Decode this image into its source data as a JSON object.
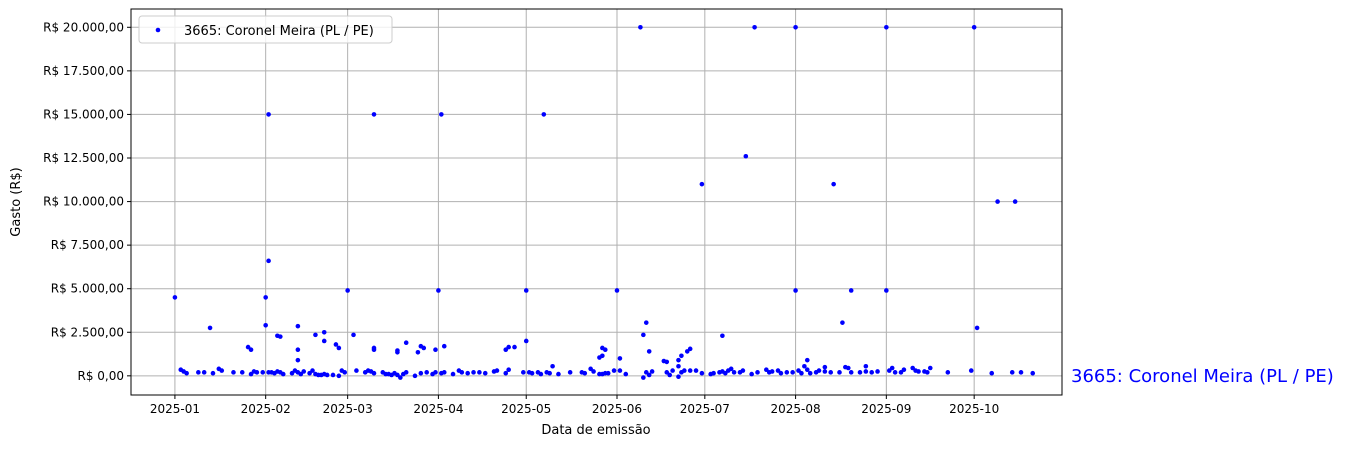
{
  "chart_data": {
    "type": "scatter",
    "xlabel": "Data de emissão",
    "ylabel": "Gasto (R$)",
    "x_type": "date",
    "xlim": [
      "2024-12-17",
      "2025-10-31"
    ],
    "ylim": [
      -1100,
      21050
    ],
    "x_ticks": [
      "2025-01",
      "2025-02",
      "2025-03",
      "2025-04",
      "2025-05",
      "2025-06",
      "2025-07",
      "2025-08",
      "2025-09",
      "2025-10"
    ],
    "y_ticks": [
      0,
      2500,
      5000,
      7500,
      10000,
      12500,
      15000,
      17500,
      20000
    ],
    "y_tick_labels": [
      "R$ 0,00",
      "R$ 2.500,00",
      "R$ 5.000,00",
      "R$ 7.500,00",
      "R$ 10.000,00",
      "R$ 12.500,00",
      "R$ 15.000,00",
      "R$ 17.500,00",
      "R$ 20.000,00"
    ],
    "grid": true,
    "legend_position": "top-left",
    "series": [
      {
        "name": "3665: Coronel Meira (PL / PE)",
        "color": "#0000ff",
        "points": [
          [
            "2025-01-01",
            4500
          ],
          [
            "2025-02-02",
            15000
          ],
          [
            "2025-02-02",
            6600
          ],
          [
            "2025-02-01",
            4500
          ],
          [
            "2025-02-01",
            2900
          ],
          [
            "2025-01-13",
            2750
          ],
          [
            "2025-03-10",
            15000
          ],
          [
            "2025-04-02",
            15000
          ],
          [
            "2025-05-07",
            15000
          ],
          [
            "2025-06-09",
            20000
          ],
          [
            "2025-07-18",
            20000
          ],
          [
            "2025-08-01",
            20000
          ],
          [
            "2025-09-01",
            20000
          ],
          [
            "2025-10-01",
            20000
          ],
          [
            "2025-07-15",
            12600
          ],
          [
            "2025-06-30",
            11000
          ],
          [
            "2025-08-14",
            11000
          ],
          [
            "2025-10-09",
            10000
          ],
          [
            "2025-10-15",
            10000
          ],
          [
            "2025-03-01",
            4900
          ],
          [
            "2025-04-01",
            4900
          ],
          [
            "2025-05-01",
            4900
          ],
          [
            "2025-06-01",
            4900
          ],
          [
            "2025-08-01",
            4900
          ],
          [
            "2025-08-20",
            4900
          ],
          [
            "2025-09-01",
            4900
          ],
          [
            "2025-10-02",
            2750
          ],
          [
            "2025-08-17",
            3050
          ],
          [
            "2025-06-11",
            3050
          ],
          [
            "2025-06-10",
            2350
          ],
          [
            "2025-07-07",
            2300
          ],
          [
            "2025-02-12",
            2850
          ],
          [
            "2025-02-05",
            2300
          ],
          [
            "2025-02-06",
            2250
          ],
          [
            "2025-02-18",
            2350
          ],
          [
            "2025-03-03",
            2350
          ],
          [
            "2025-02-21",
            2500
          ],
          [
            "2025-02-21",
            2000
          ],
          [
            "2025-01-26",
            1650
          ],
          [
            "2025-01-27",
            1500
          ],
          [
            "2025-02-12",
            1500
          ],
          [
            "2025-02-12",
            900
          ],
          [
            "2025-02-25",
            1800
          ],
          [
            "2025-02-26",
            1600
          ],
          [
            "2025-03-10",
            1600
          ],
          [
            "2025-03-10",
            1500
          ],
          [
            "2025-03-18",
            1450
          ],
          [
            "2025-03-18",
            1350
          ],
          [
            "2025-03-21",
            1900
          ],
          [
            "2025-03-25",
            1350
          ],
          [
            "2025-03-26",
            1700
          ],
          [
            "2025-03-27",
            1600
          ],
          [
            "2025-03-31",
            1500
          ],
          [
            "2025-04-03",
            1700
          ],
          [
            "2025-04-24",
            1500
          ],
          [
            "2025-04-25",
            1650
          ],
          [
            "2025-04-27",
            1650
          ],
          [
            "2025-05-01",
            2000
          ],
          [
            "2025-05-26",
            1050
          ],
          [
            "2025-05-27",
            1150
          ],
          [
            "2025-05-27",
            1600
          ],
          [
            "2025-05-28",
            1500
          ],
          [
            "2025-06-02",
            1000
          ],
          [
            "2025-06-12",
            1400
          ],
          [
            "2025-06-17",
            850
          ],
          [
            "2025-06-18",
            800
          ],
          [
            "2025-06-22",
            900
          ],
          [
            "2025-06-23",
            1150
          ],
          [
            "2025-06-25",
            1400
          ],
          [
            "2025-06-26",
            1550
          ],
          [
            "2025-06-22",
            550
          ],
          [
            "2025-08-05",
            900
          ],
          [
            "2025-08-04",
            550
          ],
          [
            "2025-08-11",
            500
          ],
          [
            "2025-08-18",
            500
          ],
          [
            "2025-08-25",
            550
          ],
          [
            "2025-01-03",
            350
          ],
          [
            "2025-01-04",
            250
          ],
          [
            "2025-01-05",
            150
          ],
          [
            "2025-01-09",
            200
          ],
          [
            "2025-01-11",
            200
          ],
          [
            "2025-01-14",
            150
          ],
          [
            "2025-01-16",
            400
          ],
          [
            "2025-01-17",
            300
          ],
          [
            "2025-01-21",
            200
          ],
          [
            "2025-01-24",
            200
          ],
          [
            "2025-01-27",
            100
          ],
          [
            "2025-01-28",
            250
          ],
          [
            "2025-01-29",
            200
          ],
          [
            "2025-01-31",
            200
          ],
          [
            "2025-02-02",
            200
          ],
          [
            "2025-02-03",
            200
          ],
          [
            "2025-02-04",
            150
          ],
          [
            "2025-02-05",
            250
          ],
          [
            "2025-02-06",
            200
          ],
          [
            "2025-02-07",
            100
          ],
          [
            "2025-02-10",
            150
          ],
          [
            "2025-02-11",
            300
          ],
          [
            "2025-02-12",
            200
          ],
          [
            "2025-02-13",
            100
          ],
          [
            "2025-02-14",
            250
          ],
          [
            "2025-02-16",
            150
          ],
          [
            "2025-02-17",
            300
          ],
          [
            "2025-02-18",
            100
          ],
          [
            "2025-02-19",
            50
          ],
          [
            "2025-02-20",
            50
          ],
          [
            "2025-02-21",
            100
          ],
          [
            "2025-02-22",
            50
          ],
          [
            "2025-02-24",
            50
          ],
          [
            "2025-02-26",
            0
          ],
          [
            "2025-02-27",
            300
          ],
          [
            "2025-02-28",
            200
          ],
          [
            "2025-03-04",
            300
          ],
          [
            "2025-03-07",
            200
          ],
          [
            "2025-03-08",
            300
          ],
          [
            "2025-03-09",
            250
          ],
          [
            "2025-03-10",
            150
          ],
          [
            "2025-03-13",
            200
          ],
          [
            "2025-03-14",
            100
          ],
          [
            "2025-03-15",
            100
          ],
          [
            "2025-03-16",
            50
          ],
          [
            "2025-03-17",
            150
          ],
          [
            "2025-03-18",
            50
          ],
          [
            "2025-03-19",
            -100
          ],
          [
            "2025-03-20",
            100
          ],
          [
            "2025-03-21",
            200
          ],
          [
            "2025-03-24",
            0
          ],
          [
            "2025-03-26",
            150
          ],
          [
            "2025-03-28",
            200
          ],
          [
            "2025-03-30",
            100
          ],
          [
            "2025-03-31",
            200
          ],
          [
            "2025-04-02",
            150
          ],
          [
            "2025-04-03",
            200
          ],
          [
            "2025-04-06",
            100
          ],
          [
            "2025-04-08",
            300
          ],
          [
            "2025-04-09",
            200
          ],
          [
            "2025-04-11",
            150
          ],
          [
            "2025-04-13",
            200
          ],
          [
            "2025-04-15",
            200
          ],
          [
            "2025-04-17",
            150
          ],
          [
            "2025-04-20",
            250
          ],
          [
            "2025-04-21",
            300
          ],
          [
            "2025-04-24",
            150
          ],
          [
            "2025-04-25",
            350
          ],
          [
            "2025-04-30",
            200
          ],
          [
            "2025-05-02",
            200
          ],
          [
            "2025-05-03",
            150
          ],
          [
            "2025-05-05",
            200
          ],
          [
            "2025-05-06",
            100
          ],
          [
            "2025-05-08",
            200
          ],
          [
            "2025-05-09",
            150
          ],
          [
            "2025-05-10",
            550
          ],
          [
            "2025-05-12",
            100
          ],
          [
            "2025-05-16",
            200
          ],
          [
            "2025-05-20",
            200
          ],
          [
            "2025-05-21",
            150
          ],
          [
            "2025-05-23",
            400
          ],
          [
            "2025-05-24",
            250
          ],
          [
            "2025-05-26",
            100
          ],
          [
            "2025-05-27",
            100
          ],
          [
            "2025-05-28",
            150
          ],
          [
            "2025-05-29",
            150
          ],
          [
            "2025-05-31",
            300
          ],
          [
            "2025-06-02",
            300
          ],
          [
            "2025-06-04",
            100
          ],
          [
            "2025-06-10",
            -100
          ],
          [
            "2025-06-11",
            200
          ],
          [
            "2025-06-12",
            50
          ],
          [
            "2025-06-13",
            250
          ],
          [
            "2025-06-18",
            200
          ],
          [
            "2025-06-19",
            50
          ],
          [
            "2025-06-20",
            300
          ],
          [
            "2025-06-22",
            -50
          ],
          [
            "2025-06-23",
            200
          ],
          [
            "2025-06-24",
            300
          ],
          [
            "2025-06-26",
            300
          ],
          [
            "2025-06-28",
            300
          ],
          [
            "2025-06-30",
            150
          ],
          [
            "2025-07-03",
            100
          ],
          [
            "2025-07-04",
            150
          ],
          [
            "2025-07-06",
            200
          ],
          [
            "2025-07-07",
            250
          ],
          [
            "2025-07-08",
            150
          ],
          [
            "2025-07-09",
            300
          ],
          [
            "2025-07-10",
            400
          ],
          [
            "2025-07-11",
            200
          ],
          [
            "2025-07-13",
            200
          ],
          [
            "2025-07-14",
            300
          ],
          [
            "2025-07-17",
            100
          ],
          [
            "2025-07-19",
            200
          ],
          [
            "2025-07-22",
            350
          ],
          [
            "2025-07-23",
            200
          ],
          [
            "2025-07-24",
            250
          ],
          [
            "2025-07-26",
            300
          ],
          [
            "2025-07-27",
            150
          ],
          [
            "2025-07-29",
            200
          ],
          [
            "2025-07-31",
            200
          ],
          [
            "2025-08-02",
            300
          ],
          [
            "2025-08-03",
            150
          ],
          [
            "2025-08-05",
            350
          ],
          [
            "2025-08-06",
            150
          ],
          [
            "2025-08-08",
            200
          ],
          [
            "2025-08-09",
            300
          ],
          [
            "2025-08-11",
            250
          ],
          [
            "2025-08-13",
            200
          ],
          [
            "2025-08-16",
            200
          ],
          [
            "2025-08-19",
            450
          ],
          [
            "2025-08-20",
            200
          ],
          [
            "2025-08-23",
            200
          ],
          [
            "2025-08-25",
            250
          ],
          [
            "2025-08-27",
            200
          ],
          [
            "2025-08-29",
            250
          ],
          [
            "2025-09-02",
            300
          ],
          [
            "2025-09-03",
            450
          ],
          [
            "2025-09-04",
            200
          ],
          [
            "2025-09-06",
            200
          ],
          [
            "2025-09-07",
            350
          ],
          [
            "2025-09-10",
            450
          ],
          [
            "2025-09-11",
            300
          ],
          [
            "2025-09-12",
            250
          ],
          [
            "2025-09-14",
            250
          ],
          [
            "2025-09-15",
            200
          ],
          [
            "2025-09-16",
            450
          ],
          [
            "2025-09-22",
            200
          ],
          [
            "2025-09-30",
            300
          ],
          [
            "2025-10-07",
            150
          ],
          [
            "2025-10-14",
            200
          ],
          [
            "2025-10-17",
            200
          ],
          [
            "2025-10-21",
            150
          ]
        ]
      }
    ],
    "annotations": [
      "3665: Coronel Meira (PL / PE)"
    ]
  }
}
